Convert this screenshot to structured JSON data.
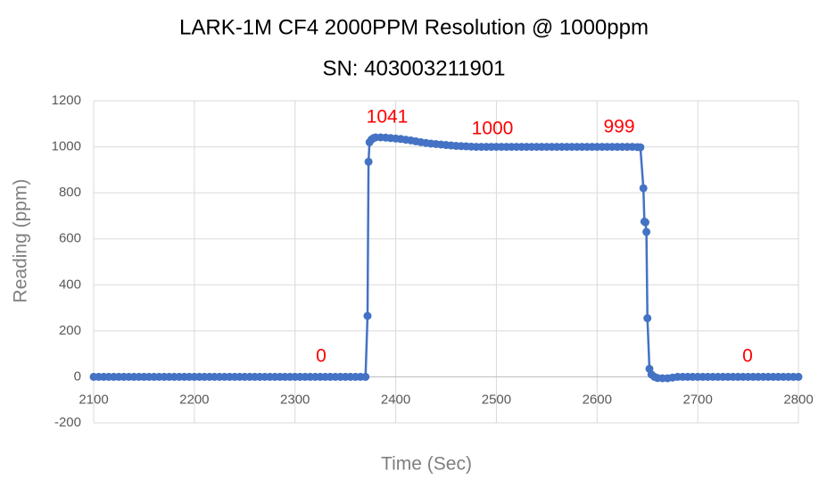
{
  "chart_data": {
    "type": "line",
    "title": "LARK-1M CF4 2000PPM Resolution @ 1000ppm",
    "subtitle": "SN: 403003211901",
    "x_label": "Time (Sec)",
    "y_label": "Reading (ppm)",
    "annotations": [
      "0",
      "1041",
      "1000",
      "999",
      "0"
    ],
    "xlim": [
      2100,
      2800
    ],
    "xticks": [
      2100,
      2200,
      2300,
      2400,
      2500,
      2600,
      2700,
      2800
    ],
    "ylim": [
      -200,
      1200
    ],
    "yticks": [
      -200,
      0,
      200,
      400,
      600,
      800,
      1000,
      1200
    ],
    "grid": true,
    "series": [
      {
        "name": "Reading",
        "color": "#4472c4",
        "x": [
          2100,
          2105,
          2110,
          2115,
          2120,
          2125,
          2130,
          2135,
          2140,
          2145,
          2150,
          2155,
          2160,
          2165,
          2170,
          2175,
          2180,
          2185,
          2190,
          2195,
          2200,
          2205,
          2210,
          2215,
          2220,
          2225,
          2230,
          2235,
          2240,
          2245,
          2250,
          2255,
          2260,
          2265,
          2270,
          2275,
          2280,
          2285,
          2290,
          2295,
          2300,
          2305,
          2310,
          2315,
          2320,
          2325,
          2330,
          2335,
          2340,
          2345,
          2350,
          2355,
          2360,
          2365,
          2370,
          2372,
          2373,
          2374,
          2376,
          2378,
          2380,
          2385,
          2390,
          2395,
          2400,
          2405,
          2410,
          2415,
          2420,
          2425,
          2430,
          2435,
          2440,
          2445,
          2450,
          2455,
          2460,
          2465,
          2470,
          2475,
          2480,
          2485,
          2490,
          2495,
          2500,
          2505,
          2510,
          2515,
          2520,
          2525,
          2530,
          2535,
          2540,
          2545,
          2550,
          2555,
          2560,
          2565,
          2570,
          2575,
          2580,
          2585,
          2590,
          2595,
          2600,
          2605,
          2610,
          2615,
          2620,
          2625,
          2630,
          2635,
          2640,
          2643,
          2646,
          2647,
          2648,
          2649,
          2650,
          2652,
          2654,
          2657,
          2660,
          2665,
          2670,
          2675,
          2680,
          2685,
          2690,
          2695,
          2700,
          2705,
          2710,
          2715,
          2720,
          2725,
          2730,
          2735,
          2740,
          2745,
          2750,
          2755,
          2760,
          2765,
          2770,
          2775,
          2780,
          2785,
          2790,
          2795,
          2800
        ],
        "values": [
          0,
          0,
          0,
          0,
          0,
          0,
          0,
          0,
          0,
          0,
          0,
          0,
          0,
          0,
          0,
          0,
          0,
          0,
          0,
          0,
          0,
          0,
          0,
          0,
          0,
          0,
          0,
          0,
          0,
          0,
          0,
          0,
          0,
          0,
          0,
          0,
          0,
          0,
          0,
          0,
          0,
          0,
          0,
          0,
          0,
          0,
          0,
          0,
          0,
          0,
          0,
          0,
          0,
          0,
          0,
          265,
          935,
          1020,
          1032,
          1038,
          1041,
          1041,
          1040,
          1038,
          1036,
          1034,
          1031,
          1028,
          1024,
          1020,
          1017,
          1014,
          1012,
          1010,
          1008,
          1006,
          1004,
          1003,
          1002,
          1001,
          1000,
          1000,
          1000,
          1000,
          1000,
          1000,
          1000,
          1000,
          1000,
          1000,
          1000,
          1000,
          1000,
          1000,
          1000,
          1000,
          1000,
          1000,
          1000,
          1000,
          1000,
          1000,
          1000,
          1000,
          1000,
          1000,
          1000,
          1000,
          1000,
          1000,
          1000,
          1000,
          999,
          998,
          820,
          675,
          672,
          630,
          255,
          35,
          10,
          0,
          -5,
          -6,
          -6,
          -3,
          0,
          0,
          0,
          0,
          0,
          0,
          0,
          0,
          0,
          0,
          0,
          0,
          0,
          0,
          0,
          0,
          0,
          0,
          0,
          0,
          0,
          0,
          0,
          0,
          0
        ]
      }
    ]
  }
}
